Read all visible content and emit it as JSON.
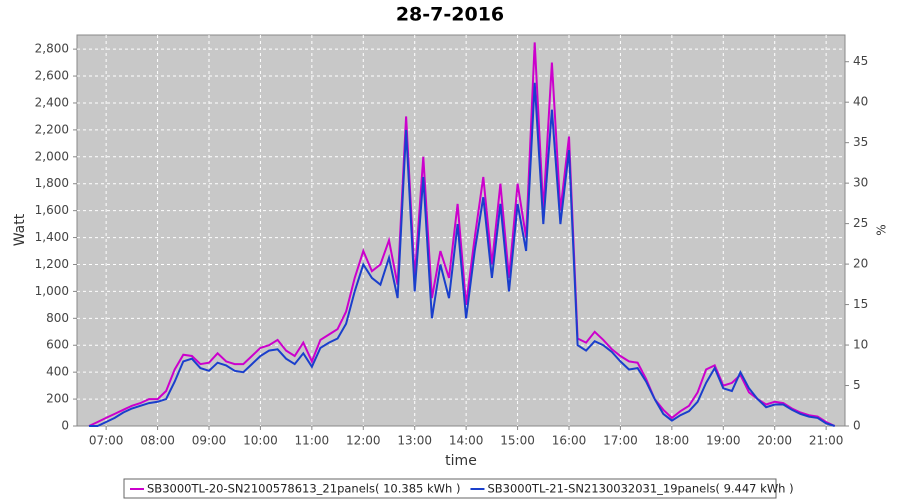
{
  "chart_data": {
    "type": "line",
    "title": "28-7-2016",
    "x_label": "time",
    "y_label": "Watt",
    "y2_label": "%",
    "x": [
      "06:40",
      "06:50",
      "07:00",
      "07:10",
      "07:20",
      "07:30",
      "07:40",
      "07:50",
      "08:00",
      "08:10",
      "08:20",
      "08:30",
      "08:40",
      "08:50",
      "09:00",
      "09:10",
      "09:20",
      "09:30",
      "09:40",
      "09:50",
      "10:00",
      "10:10",
      "10:20",
      "10:30",
      "10:40",
      "10:50",
      "11:00",
      "11:10",
      "11:20",
      "11:30",
      "11:40",
      "11:50",
      "12:00",
      "12:10",
      "12:20",
      "12:30",
      "12:40",
      "12:50",
      "13:00",
      "13:10",
      "13:20",
      "13:30",
      "13:40",
      "13:50",
      "14:00",
      "14:10",
      "14:20",
      "14:30",
      "14:40",
      "14:50",
      "15:00",
      "15:10",
      "15:20",
      "15:30",
      "15:40",
      "15:50",
      "16:00",
      "16:10",
      "16:20",
      "16:30",
      "16:40",
      "16:50",
      "17:00",
      "17:10",
      "17:20",
      "17:30",
      "17:40",
      "17:50",
      "18:00",
      "18:10",
      "18:20",
      "18:30",
      "18:40",
      "18:50",
      "19:00",
      "19:10",
      "19:20",
      "19:30",
      "19:40",
      "19:50",
      "20:00",
      "20:10",
      "20:20",
      "20:30",
      "20:40",
      "20:50",
      "21:00",
      "21:10"
    ],
    "series": [
      {
        "name": "SB3000TL-20-SN2100578613_21panels( 10.385 kWh )",
        "color": "#cc00cc",
        "values": [
          0,
          30,
          60,
          90,
          120,
          150,
          170,
          200,
          200,
          260,
          420,
          530,
          520,
          460,
          470,
          540,
          480,
          460,
          460,
          520,
          580,
          600,
          640,
          560,
          520,
          620,
          480,
          640,
          680,
          720,
          850,
          1100,
          1300,
          1150,
          1200,
          1380,
          1050,
          2300,
          1100,
          2000,
          950,
          1300,
          1100,
          1650,
          900,
          1400,
          1850,
          1200,
          1800,
          1100,
          1800,
          1400,
          2850,
          1600,
          2700,
          1600,
          2150,
          650,
          620,
          700,
          640,
          570,
          520,
          480,
          470,
          350,
          200,
          120,
          60,
          110,
          150,
          250,
          420,
          450,
          300,
          320,
          380,
          250,
          200,
          160,
          180,
          170,
          130,
          100,
          80,
          70,
          30,
          0
        ]
      },
      {
        "name": "SB3000TL-21-SN2130032031_19panels( 9.447 kWh )",
        "color": "#1a3fcc",
        "values": [
          0,
          0,
          30,
          60,
          100,
          130,
          150,
          170,
          180,
          200,
          330,
          480,
          500,
          430,
          410,
          470,
          450,
          410,
          400,
          460,
          520,
          560,
          570,
          500,
          460,
          540,
          440,
          580,
          620,
          650,
          760,
          1000,
          1200,
          1100,
          1050,
          1250,
          950,
          2200,
          1000,
          1850,
          800,
          1200,
          950,
          1500,
          800,
          1300,
          1700,
          1100,
          1650,
          1000,
          1650,
          1300,
          2550,
          1500,
          2350,
          1500,
          2050,
          600,
          560,
          630,
          600,
          550,
          480,
          420,
          430,
          330,
          200,
          90,
          40,
          80,
          110,
          180,
          320,
          430,
          280,
          260,
          400,
          280,
          200,
          140,
          160,
          160,
          120,
          90,
          70,
          60,
          20,
          0
        ]
      }
    ],
    "xlim": [
      "06:26",
      "21:22"
    ],
    "xticks": [
      "07:00",
      "08:00",
      "09:00",
      "10:00",
      "11:00",
      "12:00",
      "13:00",
      "14:00",
      "15:00",
      "16:00",
      "17:00",
      "18:00",
      "19:00",
      "20:00",
      "21:00"
    ],
    "ylim": [
      0,
      2905
    ],
    "yticks": [
      0,
      200,
      400,
      600,
      800,
      {
        "value": 1000,
        "label": "1,000"
      },
      {
        "value": 1200,
        "label": "1,200"
      },
      {
        "value": 1400,
        "label": "1,400"
      },
      {
        "value": 1600,
        "label": "1,600"
      },
      {
        "value": 1800,
        "label": "1,800"
      },
      {
        "value": 2000,
        "label": "2,000"
      },
      {
        "value": 2200,
        "label": "2,200"
      },
      {
        "value": 2400,
        "label": "2,400"
      },
      {
        "value": 2600,
        "label": "2,600"
      },
      {
        "value": 2800,
        "label": "2,800"
      }
    ],
    "y2lim": [
      0,
      48.3
    ],
    "y2ticks": [
      0,
      5,
      10,
      15,
      20,
      25,
      30,
      35,
      40,
      45
    ],
    "grid": true,
    "legend": "bottom"
  }
}
